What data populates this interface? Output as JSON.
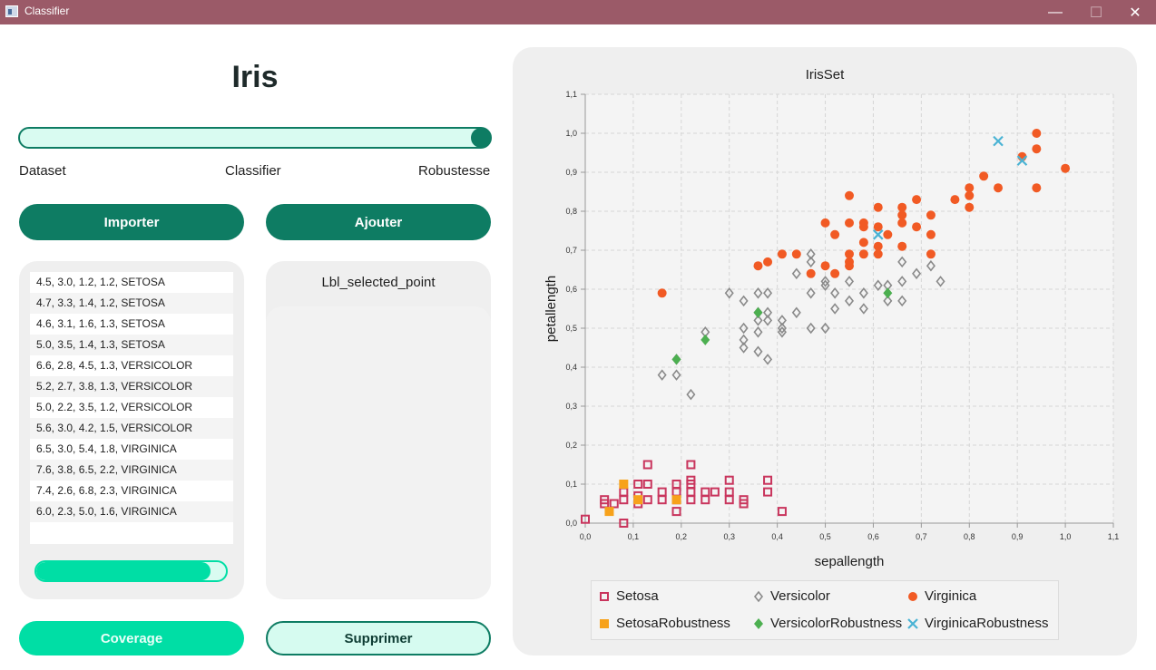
{
  "window": {
    "title": "Classifier"
  },
  "header": {
    "title": "Iris"
  },
  "slider": {
    "labels": [
      "Dataset",
      "Classifier",
      "Robustesse"
    ],
    "value": 1.0
  },
  "buttons": {
    "import_label": "Importer",
    "add_label": "Ajouter",
    "coverage_label": "Coverage",
    "delete_label": "Supprimer"
  },
  "data_list": [
    "4.5, 3.0, 1.2, 1.2, SETOSA",
    "4.7, 3.3, 1.4, 1.2, SETOSA",
    "4.6, 3.1, 1.6, 1.3, SETOSA",
    "5.0, 3.5, 1.4, 1.3, SETOSA",
    "6.6, 2.8, 4.5, 1.3, VERSICOLOR",
    "5.2, 2.7, 3.8, 1.3, VERSICOLOR",
    "5.0, 2.2, 3.5, 1.2, VERSICOLOR",
    "5.6, 3.0, 4.2, 1.5, VERSICOLOR",
    "6.5, 3.0, 5.4, 1.8, VIRGINICA",
    "7.6, 3.8, 6.5, 2.2, VIRGINICA",
    "7.4, 2.6, 6.8, 2.3, VIRGINICA",
    "6.0, 2.3, 5.0, 1.6, VIRGINICA"
  ],
  "coverage_progress": 0.92,
  "selected_point": {
    "label": "Lbl_selected_point"
  },
  "colors": {
    "accent_dark": "#0e7c63",
    "accent_mint": "#00dea5",
    "setosa": "#c9355d",
    "setosa_robustness": "#f7a21b",
    "versicolor": "#8a8a8a",
    "versicolor_robustness": "#4caf50",
    "virginica": "#f15a24",
    "virginica_robustness": "#4ab3d4"
  },
  "chart_data": {
    "type": "scatter",
    "title": "IrisSet",
    "xlabel": "sepallength",
    "ylabel": "petallength",
    "xlim": [
      0.0,
      1.1
    ],
    "ylim": [
      0.0,
      1.1
    ],
    "x_ticks": [
      "0,0",
      "0,1",
      "0,2",
      "0,3",
      "0,4",
      "0,5",
      "0,6",
      "0,7",
      "0,8",
      "0,9",
      "1,0",
      "1,1"
    ],
    "y_ticks": [
      "0,0",
      "0,1",
      "0,2",
      "0,3",
      "0,4",
      "0,5",
      "0,6",
      "0,7",
      "0,8",
      "0,9",
      "1,0",
      "1,1"
    ],
    "grid": true,
    "legend_position": "bottom",
    "series": [
      {
        "name": "Setosa",
        "marker": "square-open",
        "points": [
          [
            0.0,
            0.01
          ],
          [
            0.04,
            0.06
          ],
          [
            0.04,
            0.05
          ],
          [
            0.06,
            0.05
          ],
          [
            0.08,
            0.08
          ],
          [
            0.08,
            0.06
          ],
          [
            0.08,
            0.0
          ],
          [
            0.11,
            0.1
          ],
          [
            0.11,
            0.07
          ],
          [
            0.11,
            0.05
          ],
          [
            0.13,
            0.15
          ],
          [
            0.13,
            0.1
          ],
          [
            0.13,
            0.06
          ],
          [
            0.16,
            0.08
          ],
          [
            0.16,
            0.06
          ],
          [
            0.19,
            0.1
          ],
          [
            0.19,
            0.08
          ],
          [
            0.19,
            0.06
          ],
          [
            0.19,
            0.03
          ],
          [
            0.22,
            0.15
          ],
          [
            0.22,
            0.11
          ],
          [
            0.22,
            0.1
          ],
          [
            0.22,
            0.08
          ],
          [
            0.22,
            0.06
          ],
          [
            0.25,
            0.08
          ],
          [
            0.25,
            0.06
          ],
          [
            0.27,
            0.08
          ],
          [
            0.3,
            0.11
          ],
          [
            0.3,
            0.08
          ],
          [
            0.3,
            0.06
          ],
          [
            0.33,
            0.06
          ],
          [
            0.33,
            0.05
          ],
          [
            0.38,
            0.11
          ],
          [
            0.38,
            0.08
          ],
          [
            0.41,
            0.03
          ]
        ]
      },
      {
        "name": "Versicolor",
        "marker": "diamond-open",
        "points": [
          [
            0.16,
            0.38
          ],
          [
            0.19,
            0.42
          ],
          [
            0.19,
            0.38
          ],
          [
            0.22,
            0.33
          ],
          [
            0.25,
            0.49
          ],
          [
            0.3,
            0.59
          ],
          [
            0.33,
            0.57
          ],
          [
            0.33,
            0.5
          ],
          [
            0.33,
            0.47
          ],
          [
            0.33,
            0.45
          ],
          [
            0.36,
            0.59
          ],
          [
            0.36,
            0.54
          ],
          [
            0.36,
            0.52
          ],
          [
            0.36,
            0.49
          ],
          [
            0.36,
            0.44
          ],
          [
            0.38,
            0.59
          ],
          [
            0.38,
            0.54
          ],
          [
            0.38,
            0.52
          ],
          [
            0.38,
            0.42
          ],
          [
            0.41,
            0.52
          ],
          [
            0.41,
            0.5
          ],
          [
            0.41,
            0.49
          ],
          [
            0.44,
            0.64
          ],
          [
            0.44,
            0.54
          ],
          [
            0.47,
            0.69
          ],
          [
            0.47,
            0.67
          ],
          [
            0.47,
            0.59
          ],
          [
            0.47,
            0.5
          ],
          [
            0.5,
            0.62
          ],
          [
            0.5,
            0.61
          ],
          [
            0.5,
            0.5
          ],
          [
            0.52,
            0.59
          ],
          [
            0.52,
            0.55
          ],
          [
            0.55,
            0.62
          ],
          [
            0.55,
            0.57
          ],
          [
            0.58,
            0.59
          ],
          [
            0.58,
            0.55
          ],
          [
            0.61,
            0.61
          ],
          [
            0.63,
            0.61
          ],
          [
            0.63,
            0.57
          ],
          [
            0.66,
            0.67
          ],
          [
            0.66,
            0.62
          ],
          [
            0.66,
            0.57
          ],
          [
            0.69,
            0.64
          ],
          [
            0.72,
            0.66
          ],
          [
            0.74,
            0.62
          ]
        ]
      },
      {
        "name": "Virginica",
        "marker": "circle",
        "points": [
          [
            0.16,
            0.59
          ],
          [
            0.36,
            0.66
          ],
          [
            0.38,
            0.67
          ],
          [
            0.41,
            0.69
          ],
          [
            0.44,
            0.69
          ],
          [
            0.47,
            0.64
          ],
          [
            0.5,
            0.77
          ],
          [
            0.5,
            0.66
          ],
          [
            0.52,
            0.74
          ],
          [
            0.52,
            0.64
          ],
          [
            0.55,
            0.84
          ],
          [
            0.55,
            0.77
          ],
          [
            0.55,
            0.69
          ],
          [
            0.55,
            0.67
          ],
          [
            0.55,
            0.66
          ],
          [
            0.58,
            0.77
          ],
          [
            0.58,
            0.76
          ],
          [
            0.58,
            0.72
          ],
          [
            0.58,
            0.69
          ],
          [
            0.61,
            0.81
          ],
          [
            0.61,
            0.76
          ],
          [
            0.61,
            0.71
          ],
          [
            0.61,
            0.69
          ],
          [
            0.63,
            0.74
          ],
          [
            0.66,
            0.81
          ],
          [
            0.66,
            0.79
          ],
          [
            0.66,
            0.77
          ],
          [
            0.66,
            0.71
          ],
          [
            0.69,
            0.83
          ],
          [
            0.69,
            0.76
          ],
          [
            0.72,
            0.79
          ],
          [
            0.72,
            0.74
          ],
          [
            0.72,
            0.69
          ],
          [
            0.77,
            0.83
          ],
          [
            0.8,
            0.86
          ],
          [
            0.8,
            0.84
          ],
          [
            0.8,
            0.81
          ],
          [
            0.83,
            0.89
          ],
          [
            0.86,
            0.86
          ],
          [
            0.91,
            0.94
          ],
          [
            0.94,
            1.0
          ],
          [
            0.94,
            0.96
          ],
          [
            0.94,
            0.86
          ],
          [
            1.0,
            0.91
          ]
        ]
      },
      {
        "name": "SetosaRobustness",
        "marker": "square",
        "points": [
          [
            0.05,
            0.03
          ],
          [
            0.08,
            0.1
          ],
          [
            0.11,
            0.06
          ],
          [
            0.19,
            0.06
          ]
        ]
      },
      {
        "name": "VersicolorRobustness",
        "marker": "diamond",
        "points": [
          [
            0.19,
            0.42
          ],
          [
            0.25,
            0.47
          ],
          [
            0.36,
            0.54
          ],
          [
            0.63,
            0.59
          ]
        ]
      },
      {
        "name": "VirginicaRobustness",
        "marker": "cross",
        "points": [
          [
            0.61,
            0.74
          ],
          [
            0.86,
            0.98
          ],
          [
            0.91,
            0.93
          ]
        ]
      }
    ]
  }
}
